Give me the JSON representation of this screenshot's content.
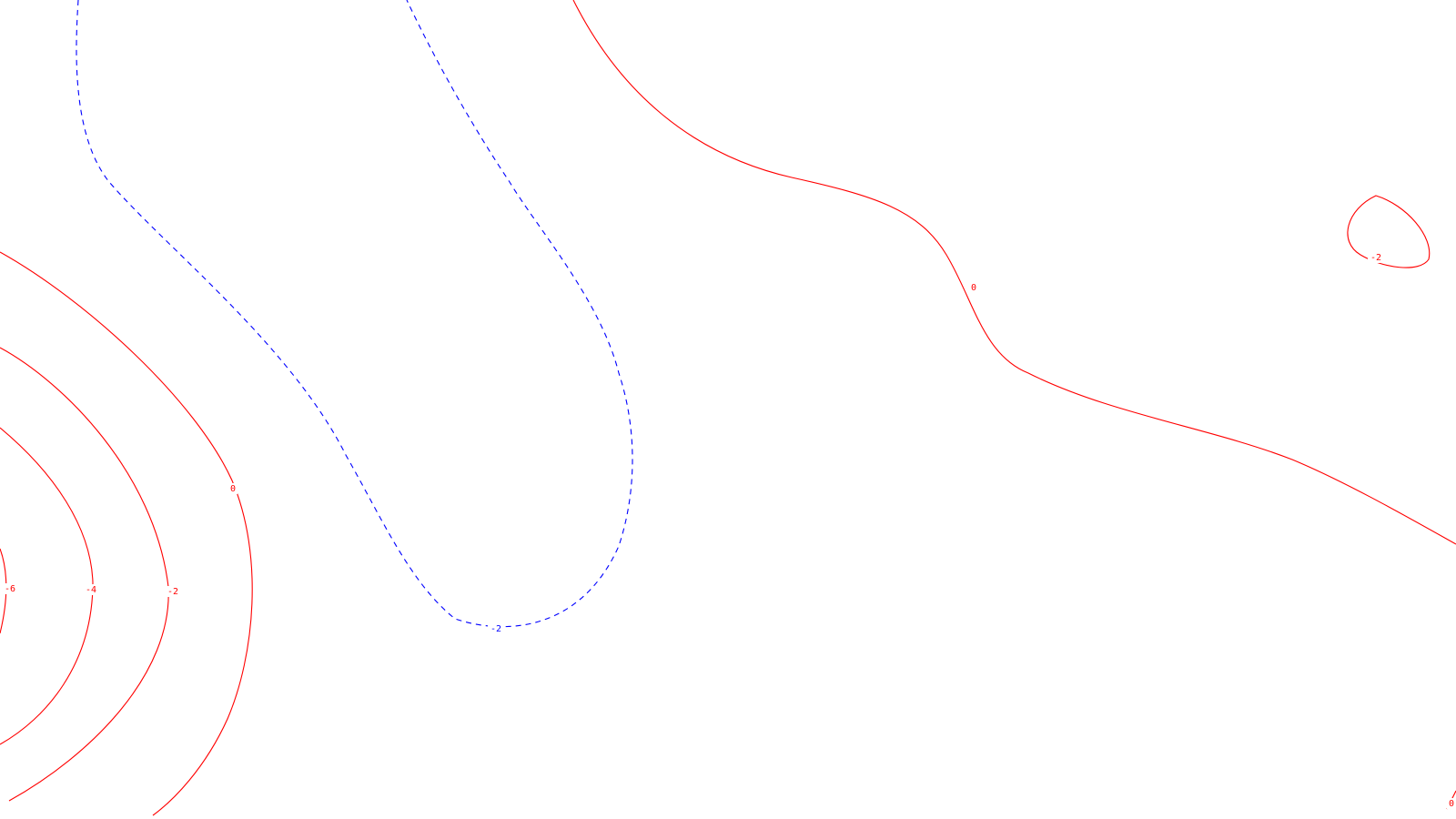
{
  "map": {
    "colors": {
      "line_color_red": "#ff0000",
      "line_color_blue_dashed": "#0000ff",
      "background": "#ffffff"
    },
    "contours": [
      {
        "id": "red-0-left",
        "level_label": "0",
        "color": "red",
        "style": "solid"
      },
      {
        "id": "red-m2-left",
        "level_label": "-2",
        "color": "red",
        "style": "solid"
      },
      {
        "id": "red-m4-left",
        "level_label": "-4",
        "color": "red",
        "style": "solid"
      },
      {
        "id": "red-m6-left",
        "level_label": "-6",
        "color": "red",
        "style": "solid"
      },
      {
        "id": "blue-m2-dashed",
        "level_label": "-2",
        "color": "blue",
        "style": "dashed"
      },
      {
        "id": "red-0-right",
        "level_label": "0",
        "color": "red",
        "style": "solid"
      },
      {
        "id": "red-m2-loop",
        "level_label": "-2",
        "color": "red",
        "style": "solid"
      },
      {
        "id": "red-0-corner",
        "level_label": "0",
        "color": "red",
        "style": "solid"
      }
    ]
  }
}
